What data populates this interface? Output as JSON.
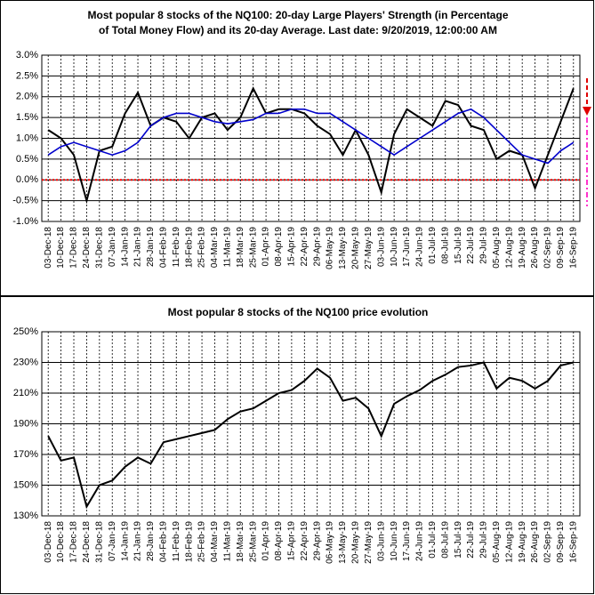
{
  "chart_data": [
    {
      "type": "line",
      "title": [
        "Most popular 8 stocks of the NQ100: 20-day Large Players' Strength (in Percentage",
        "of Total Money Flow) and its 20-day Average. Last date: 9/20/2019, 12:00:00 AM"
      ],
      "categories": [
        "03-Dec-18",
        "10-Dec-18",
        "17-Dec-18",
        "24-Dec-18",
        "31-Dec-18",
        "07-Jan-19",
        "14-Jan-19",
        "21-Jan-19",
        "28-Jan-19",
        "04-Feb-19",
        "11-Feb-19",
        "18-Feb-19",
        "25-Feb-19",
        "04-Mar-19",
        "11-Mar-19",
        "18-Mar-19",
        "25-Mar-19",
        "01-Apr-19",
        "08-Apr-19",
        "15-Apr-19",
        "22-Apr-19",
        "29-Apr-19",
        "06-May-19",
        "13-May-19",
        "20-May-19",
        "27-May-19",
        "03-Jun-19",
        "10-Jun-19",
        "17-Jun-19",
        "24-Jun-19",
        "01-Jul-19",
        "08-Jul-19",
        "15-Jul-19",
        "22-Jul-19",
        "29-Jul-19",
        "05-Aug-19",
        "12-Aug-19",
        "19-Aug-19",
        "26-Aug-19",
        "02-Sep-19",
        "09-Sep-19",
        "16-Sep-19"
      ],
      "series": [
        {
          "color": "#000000",
          "values": [
            1.2,
            1.0,
            0.6,
            -0.5,
            0.7,
            0.8,
            1.6,
            2.1,
            1.3,
            1.5,
            1.4,
            1.0,
            1.5,
            1.6,
            1.2,
            1.5,
            2.2,
            1.6,
            1.7,
            1.7,
            1.6,
            1.3,
            1.1,
            0.6,
            1.2,
            0.6,
            -0.3,
            1.1,
            1.7,
            1.5,
            1.3,
            1.9,
            1.8,
            1.3,
            1.2,
            0.5,
            0.7,
            0.6,
            -0.2,
            0.6,
            1.4,
            2.2
          ]
        },
        {
          "color": "#0000cc",
          "values": [
            0.6,
            0.8,
            0.9,
            0.8,
            0.7,
            0.6,
            0.7,
            0.9,
            1.3,
            1.5,
            1.6,
            1.6,
            1.5,
            1.4,
            1.35,
            1.4,
            1.45,
            1.6,
            1.6,
            1.7,
            1.7,
            1.6,
            1.6,
            1.4,
            1.2,
            1.0,
            0.8,
            0.6,
            0.8,
            1.0,
            1.2,
            1.4,
            1.6,
            1.7,
            1.5,
            1.2,
            0.9,
            0.6,
            0.5,
            0.4,
            0.7,
            0.9
          ]
        }
      ],
      "ylim": [
        -1.0,
        3.0
      ],
      "yticks": [
        {
          "value": -1.0,
          "label": "-1.0%"
        },
        {
          "value": -0.5,
          "label": "-0.5%"
        },
        {
          "value": 0.0,
          "label": "0.0%"
        },
        {
          "value": 0.5,
          "label": "0.5%"
        },
        {
          "value": 1.0,
          "label": "1.0%"
        },
        {
          "value": 1.5,
          "label": "1.5%"
        },
        {
          "value": 2.0,
          "label": "2.0%"
        },
        {
          "value": 2.5,
          "label": "2.5%"
        },
        {
          "value": 3.0,
          "label": "3.0%"
        }
      ],
      "grid": true,
      "zero_line_color": "#ff0000"
    },
    {
      "type": "line",
      "title": [
        "Most popular 8 stocks of the NQ100 price evolution"
      ],
      "categories": [
        "03-Dec-18",
        "10-Dec-18",
        "17-Dec-18",
        "24-Dec-18",
        "31-Dec-18",
        "07-Jan-19",
        "14-Jan-19",
        "21-Jan-19",
        "28-Jan-19",
        "04-Feb-19",
        "11-Feb-19",
        "18-Feb-19",
        "25-Feb-19",
        "04-Mar-19",
        "11-Mar-19",
        "18-Mar-19",
        "25-Mar-19",
        "01-Apr-19",
        "08-Apr-19",
        "15-Apr-19",
        "22-Apr-19",
        "29-Apr-19",
        "06-May-19",
        "13-May-19",
        "20-May-19",
        "27-May-19",
        "03-Jun-19",
        "10-Jun-19",
        "17-Jun-19",
        "24-Jun-19",
        "01-Jul-19",
        "08-Jul-19",
        "15-Jul-19",
        "22-Jul-19",
        "29-Jul-19",
        "05-Aug-19",
        "12-Aug-19",
        "19-Aug-19",
        "26-Aug-19",
        "02-Sep-19",
        "09-Sep-19",
        "16-Sep-19"
      ],
      "series": [
        {
          "color": "#000000",
          "values": [
            182,
            166,
            168,
            136,
            150,
            153,
            162,
            168,
            164,
            178,
            180,
            182,
            184,
            186,
            193,
            198,
            200,
            205,
            210,
            212,
            218,
            226,
            220,
            205,
            207,
            200,
            182,
            203,
            208,
            212,
            218,
            222,
            227,
            228,
            230,
            213,
            220,
            218,
            213,
            218,
            228,
            230
          ]
        }
      ],
      "ylim": [
        130,
        250
      ],
      "yticks": [
        {
          "value": 130,
          "label": "130%"
        },
        {
          "value": 150,
          "label": "150%"
        },
        {
          "value": 170,
          "label": "170%"
        },
        {
          "value": 190,
          "label": "190%"
        },
        {
          "value": 210,
          "label": "210%"
        },
        {
          "value": 230,
          "label": "230%"
        },
        {
          "value": 250,
          "label": "250%"
        }
      ],
      "grid": true
    }
  ]
}
